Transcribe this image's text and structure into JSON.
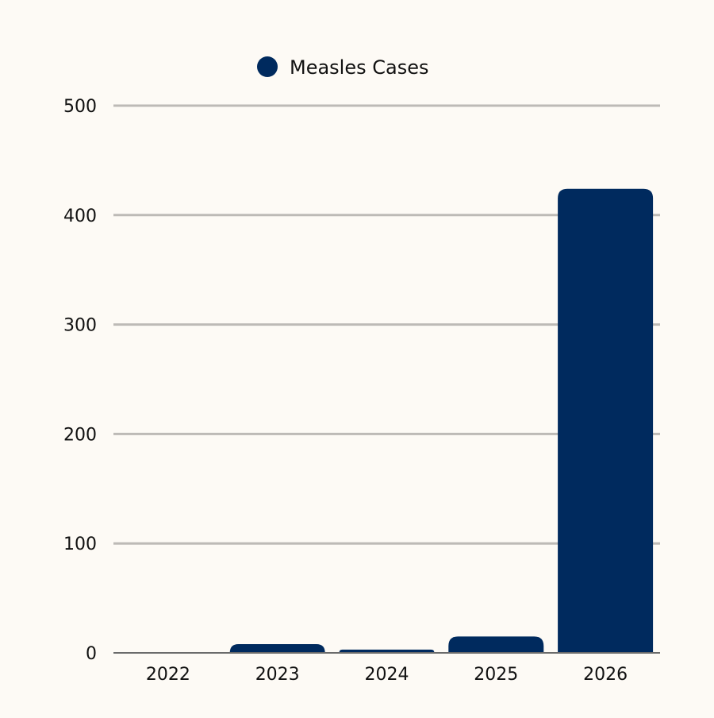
{
  "colors": {
    "background": "#fdfaf5",
    "bar": "#002a5e",
    "grid": "#bdbab6",
    "baseline": "#6b6b6b",
    "text": "#111111"
  },
  "legend": {
    "label": "Measles Cases",
    "position": "top-center"
  },
  "chart_data": {
    "type": "bar",
    "categories": [
      "2022",
      "2023",
      "2024",
      "2025",
      "2026"
    ],
    "series": [
      {
        "name": "Measles Cases",
        "values": [
          0,
          8,
          3,
          15,
          424
        ]
      }
    ],
    "title": "",
    "xlabel": "",
    "ylabel": "",
    "ylim": [
      0,
      500
    ],
    "yticks": [
      0,
      100,
      200,
      300,
      400,
      500
    ],
    "grid": true
  }
}
